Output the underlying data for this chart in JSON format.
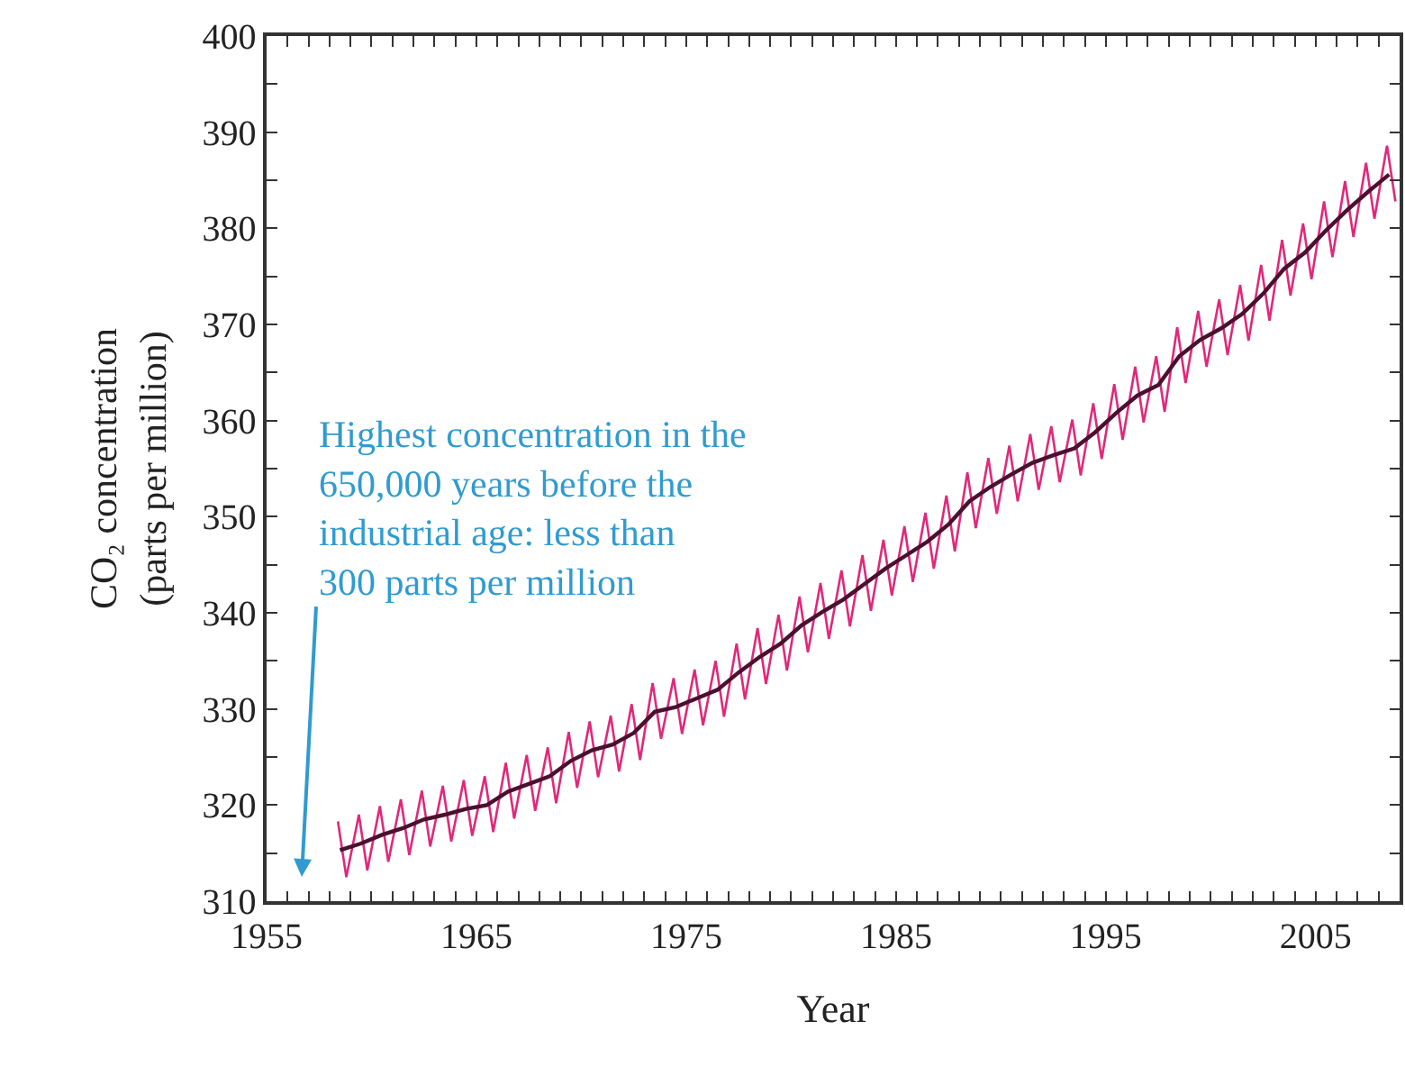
{
  "chart_data": {
    "type": "line",
    "xlabel": "Year",
    "ylabel": "CO₂ concentration\n(parts per million)",
    "annotations": [
      "Highest concentration in the\n650,000 years before the\nindustrial age: less than\n300 parts per million"
    ],
    "series": [
      {
        "color": "#e0287a",
        "x": [
          1958.4,
          1958.8,
          1959.4,
          1959.8,
          1960.4,
          1960.8,
          1961.4,
          1961.8,
          1962.4,
          1962.8,
          1963.4,
          1963.8,
          1964.4,
          1964.8,
          1965.4,
          1965.8,
          1966.4,
          1966.8,
          1967.4,
          1967.8,
          1968.4,
          1968.8,
          1969.4,
          1969.8,
          1970.4,
          1970.8,
          1971.4,
          1971.8,
          1972.4,
          1972.8,
          1973.4,
          1973.8,
          1974.4,
          1974.8,
          1975.4,
          1975.8,
          1976.4,
          1976.8,
          1977.4,
          1977.8,
          1978.4,
          1978.8,
          1979.4,
          1979.8,
          1980.4,
          1980.8,
          1981.4,
          1981.8,
          1982.4,
          1982.8,
          1983.4,
          1983.8,
          1984.4,
          1984.8,
          1985.4,
          1985.8,
          1986.4,
          1986.8,
          1987.4,
          1987.8,
          1988.4,
          1988.8,
          1989.4,
          1989.8,
          1990.4,
          1990.8,
          1991.4,
          1991.8,
          1992.4,
          1992.8,
          1993.4,
          1993.8,
          1994.4,
          1994.8,
          1995.4,
          1995.8,
          1996.4,
          1996.8,
          1997.4,
          1997.8,
          1998.4,
          1998.8,
          1999.4,
          1999.8,
          2000.4,
          2000.8,
          2001.4,
          2001.8,
          2002.4,
          2002.8,
          2003.4,
          2003.8,
          2004.4,
          2004.8,
          2005.4,
          2005.8,
          2006.4,
          2006.8,
          2007.4,
          2007.8,
          2008.4,
          2008.8
        ],
        "values": [
          318.3,
          312.5,
          319.0,
          313.2,
          319.9,
          314.1,
          320.6,
          314.8,
          321.5,
          315.7,
          322.0,
          316.2,
          322.6,
          316.8,
          323.0,
          317.2,
          324.4,
          318.6,
          325.2,
          319.4,
          326.0,
          320.2,
          327.6,
          321.8,
          328.7,
          322.9,
          329.3,
          323.5,
          330.5,
          324.7,
          332.7,
          326.9,
          333.2,
          327.4,
          334.1,
          328.3,
          335.0,
          329.2,
          336.8,
          331.0,
          338.4,
          332.6,
          339.8,
          334.0,
          341.7,
          335.9,
          343.1,
          337.3,
          344.4,
          338.6,
          346.0,
          340.2,
          347.6,
          341.8,
          349.0,
          343.2,
          350.4,
          344.6,
          352.2,
          346.4,
          354.6,
          348.8,
          356.1,
          350.3,
          357.4,
          351.6,
          358.6,
          352.8,
          359.4,
          353.6,
          360.1,
          354.3,
          361.8,
          356.0,
          363.8,
          358.0,
          365.6,
          359.8,
          366.7,
          360.9,
          369.7,
          363.9,
          371.4,
          365.6,
          372.6,
          366.8,
          374.1,
          368.3,
          376.2,
          370.4,
          378.8,
          373.0,
          380.5,
          374.7,
          382.8,
          377.0,
          384.9,
          379.1,
          386.8,
          381.0,
          388.6,
          382.8
        ]
      },
      {
        "color": "#4a1030",
        "x": [
          1958.5,
          1959.5,
          1960.5,
          1961.5,
          1962.5,
          1963.5,
          1964.5,
          1965.5,
          1966.5,
          1967.5,
          1968.5,
          1969.5,
          1970.5,
          1971.5,
          1972.5,
          1973.5,
          1974.5,
          1975.5,
          1976.5,
          1977.5,
          1978.5,
          1979.5,
          1980.5,
          1981.5,
          1982.5,
          1983.5,
          1984.5,
          1985.5,
          1986.5,
          1987.5,
          1988.5,
          1989.5,
          1990.5,
          1991.5,
          1992.5,
          1993.5,
          1994.5,
          1995.5,
          1996.5,
          1997.5,
          1998.5,
          1999.5,
          2000.5,
          2001.5,
          2002.5,
          2003.5,
          2004.5,
          2005.5,
          2006.5,
          2007.5,
          2008.5
        ],
        "values": [
          315.3,
          316.0,
          316.9,
          317.6,
          318.5,
          319.0,
          319.6,
          320.0,
          321.4,
          322.2,
          323.0,
          324.6,
          325.7,
          326.3,
          327.5,
          329.7,
          330.2,
          331.1,
          332.0,
          333.8,
          335.4,
          336.8,
          338.7,
          340.1,
          341.4,
          343.0,
          344.6,
          346.0,
          347.4,
          349.2,
          351.6,
          353.1,
          354.4,
          355.6,
          356.4,
          357.1,
          358.8,
          360.8,
          362.6,
          363.7,
          366.7,
          368.4,
          369.6,
          371.1,
          373.2,
          375.8,
          377.5,
          379.8,
          381.9,
          383.8,
          385.6
        ]
      }
    ],
    "xlim": [
      1955,
      2009
    ],
    "xticks": [
      1955,
      {
        "value": 1956,
        "label": null
      },
      {
        "value": 1957,
        "label": null
      },
      {
        "value": 1958,
        "label": null
      },
      {
        "value": 1959,
        "label": null
      },
      {
        "value": 1960,
        "label": null
      },
      {
        "value": 1961,
        "label": null
      },
      {
        "value": 1962,
        "label": null
      },
      {
        "value": 1963,
        "label": null
      },
      {
        "value": 1964,
        "label": null
      },
      1965,
      {
        "value": 1966,
        "label": null
      },
      {
        "value": 1967,
        "label": null
      },
      {
        "value": 1968,
        "label": null
      },
      {
        "value": 1969,
        "label": null
      },
      {
        "value": 1970,
        "label": null
      },
      {
        "value": 1971,
        "label": null
      },
      {
        "value": 1972,
        "label": null
      },
      {
        "value": 1973,
        "label": null
      },
      {
        "value": 1974,
        "label": null
      },
      1975,
      {
        "value": 1976,
        "label": null
      },
      {
        "value": 1977,
        "label": null
      },
      {
        "value": 1978,
        "label": null
      },
      {
        "value": 1979,
        "label": null
      },
      {
        "value": 1980,
        "label": null
      },
      {
        "value": 1981,
        "label": null
      },
      {
        "value": 1982,
        "label": null
      },
      {
        "value": 1983,
        "label": null
      },
      {
        "value": 1984,
        "label": null
      },
      1985,
      {
        "value": 1986,
        "label": null
      },
      {
        "value": 1987,
        "label": null
      },
      {
        "value": 1988,
        "label": null
      },
      {
        "value": 1989,
        "label": null
      },
      {
        "value": 1990,
        "label": null
      },
      {
        "value": 1991,
        "label": null
      },
      {
        "value": 1992,
        "label": null
      },
      {
        "value": 1993,
        "label": null
      },
      {
        "value": 1994,
        "label": null
      },
      1995,
      {
        "value": 1996,
        "label": null
      },
      {
        "value": 1997,
        "label": null
      },
      {
        "value": 1998,
        "label": null
      },
      {
        "value": 1999,
        "label": null
      },
      {
        "value": 2000,
        "label": null
      },
      {
        "value": 2001,
        "label": null
      },
      {
        "value": 2002,
        "label": null
      },
      {
        "value": 2003,
        "label": null
      },
      {
        "value": 2004,
        "label": null
      },
      2005,
      {
        "value": 2006,
        "label": null
      },
      {
        "value": 2007,
        "label": null
      },
      {
        "value": 2008,
        "label": null
      }
    ],
    "ylim": [
      310,
      400
    ],
    "yticks": [
      310,
      {
        "value": 315,
        "label": null
      },
      320,
      {
        "value": 325,
        "label": null
      },
      330,
      {
        "value": 335,
        "label": null
      },
      340,
      {
        "value": 345,
        "label": null
      },
      350,
      {
        "value": 355,
        "label": null
      },
      360,
      {
        "value": 365,
        "label": null
      },
      370,
      {
        "value": 375,
        "label": null
      },
      380,
      {
        "value": 385,
        "label": null
      },
      390,
      {
        "value": 395,
        "label": null
      },
      400
    ],
    "marker": "none",
    "line_style": "solid"
  }
}
